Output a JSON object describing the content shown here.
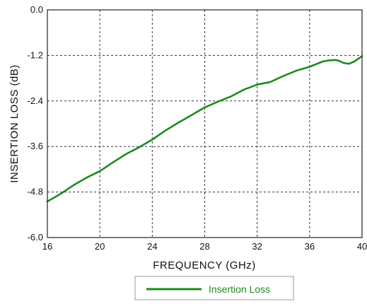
{
  "chart_data": {
    "type": "line",
    "xlabel": "FREQUENCY (GHz)",
    "ylabel": "INSERTION LOSS (dB)",
    "xlim": [
      16,
      40
    ],
    "ylim": [
      -6.0,
      0.0
    ],
    "xticks": [
      "16",
      "20",
      "24",
      "28",
      "32",
      "36",
      "40"
    ],
    "yticks": [
      "0.0",
      "-1.2",
      "-2.4",
      "-3.6",
      "-4.8",
      "-6.0"
    ],
    "grid": true,
    "legend_position": "bottom-center",
    "series": [
      {
        "name": "Insertion Loss",
        "color": "#1e8a1e",
        "x": [
          16,
          17,
          18,
          19,
          20,
          21,
          22,
          23,
          24,
          25,
          26,
          27,
          28,
          29,
          30,
          31,
          32,
          33,
          34,
          35,
          36,
          37,
          37.5,
          38,
          38.3,
          38.6,
          39,
          39.4,
          40
        ],
        "y": [
          -5.05,
          -4.85,
          -4.62,
          -4.42,
          -4.25,
          -4.02,
          -3.8,
          -3.62,
          -3.42,
          -3.18,
          -2.97,
          -2.77,
          -2.57,
          -2.42,
          -2.28,
          -2.1,
          -1.97,
          -1.9,
          -1.74,
          -1.6,
          -1.5,
          -1.36,
          -1.33,
          -1.32,
          -1.35,
          -1.4,
          -1.42,
          -1.36,
          -1.22
        ]
      }
    ]
  }
}
